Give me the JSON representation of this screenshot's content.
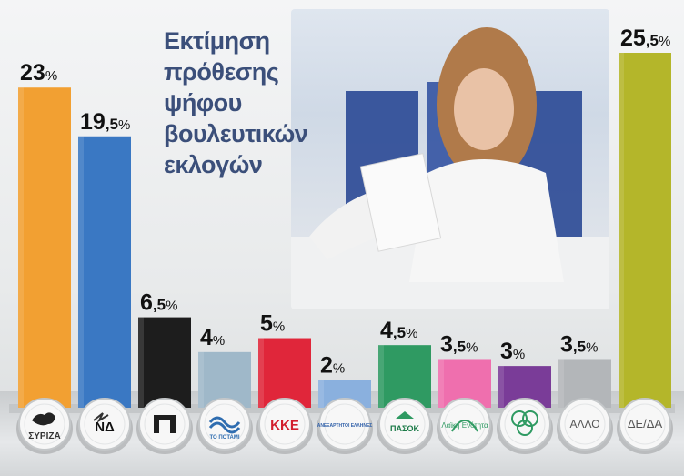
{
  "title_lines": [
    "Εκτίμηση",
    "πρόθεσης",
    "ψήφου",
    "βουλευτικών",
    "εκλογών"
  ],
  "chart_data": {
    "type": "bar",
    "title": "Εκτίμηση πρόθεσης ψήφου βουλευτικών εκλογών",
    "categories": [
      "ΣΥΡΙΖΑ",
      "ΝΔ",
      "Χρυσή Αυγή",
      "Το Ποτάμι",
      "ΚΚΕ",
      "ΑΝΕΛ",
      "ΠΑΣΟΚ",
      "Λαϊκή Ενότητα",
      "Ένωση Κεντρώων",
      "ΑΛΛΟ",
      "ΔΕ/ΔΑ"
    ],
    "values": [
      23,
      19.5,
      6.5,
      4,
      5,
      2,
      4.5,
      3.5,
      3,
      3.5,
      25.5
    ],
    "value_labels": [
      {
        "int": "23",
        "dec": "",
        "pct": "%"
      },
      {
        "int": "19",
        "dec": ",5",
        "pct": "%"
      },
      {
        "int": "6",
        "dec": ",5",
        "pct": "%"
      },
      {
        "int": "4",
        "dec": "",
        "pct": "%"
      },
      {
        "int": "5",
        "dec": "",
        "pct": "%"
      },
      {
        "int": "2",
        "dec": "",
        "pct": "%"
      },
      {
        "int": "4",
        "dec": ",5",
        "pct": "%"
      },
      {
        "int": "3",
        "dec": ",5",
        "pct": "%"
      },
      {
        "int": "3",
        "dec": "",
        "pct": "%"
      },
      {
        "int": "3",
        "dec": ",5",
        "pct": "%"
      },
      {
        "int": "25",
        "dec": ",5",
        "pct": "%"
      }
    ],
    "colors": [
      "#f2a032",
      "#3a78c3",
      "#1d1d1d",
      "#9fb8c9",
      "#e0263a",
      "#8ab0de",
      "#2f9a62",
      "#ef6fae",
      "#7a3c98",
      "#b3b6b9",
      "#b4b62a"
    ],
    "icon_texts": [
      "ΣΥΡΙΖΑ",
      "ΝΔ",
      "",
      "ΤΟ ΠΟΤΑΜΙ",
      "ΚΚΕ",
      "ΑΝΕΞΑΡΤΗΤΟΙ ΕΛΛΗΝΕΣ",
      "ΠΑΣΟΚ",
      "Λαϊκή Ενότητα",
      "",
      "ΑΛΛΟ",
      "ΔΕ/ΔΑ"
    ],
    "icon_names": [
      "syriza-logo",
      "nd-logo",
      "golden-dawn-logo",
      "potami-logo",
      "kke-logo",
      "anel-logo",
      "pasok-logo",
      "laiki-enotita-logo",
      "enosi-kentroon-logo",
      "other-label",
      "undecided-label"
    ],
    "ylim": [
      0,
      25.5
    ],
    "grid": false,
    "xlabel": "",
    "ylabel": ""
  }
}
